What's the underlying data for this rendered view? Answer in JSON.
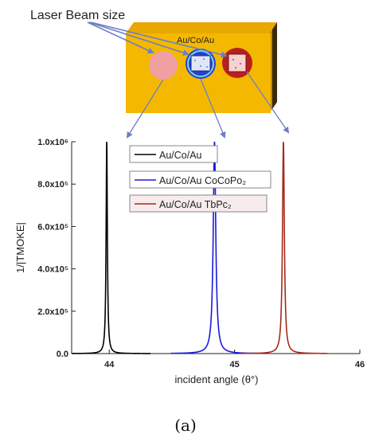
{
  "illustration": {
    "callout": "Laser Beam size",
    "sample_label": "Au/Co/Au",
    "colors": {
      "substrate": "#f5b800",
      "side": "#c98a00",
      "spot_pink": "#f0a0a0",
      "spot_blue": "#2a3fcf",
      "spot_red": "#b82020",
      "arrow": "#6b7fc4"
    }
  },
  "panel_label": "(a)",
  "chart_data": {
    "type": "line",
    "xlabel": "incident angle (θ°)",
    "ylabel": "1/|TMOKE|",
    "xlim": [
      43.7,
      46.0
    ],
    "ylim": [
      0,
      1000000
    ],
    "x_ticks": [
      44,
      45,
      46
    ],
    "x_tick_labels": [
      "44",
      "45",
      "46"
    ],
    "y_ticks": [
      0,
      200000,
      400000,
      600000,
      800000,
      1000000
    ],
    "y_tick_labels": [
      "0.0",
      "2.0x10⁵",
      "4.0x10⁵",
      "6.0x10⁵",
      "8.0x10⁵",
      "1.0x10⁶"
    ],
    "grid": false,
    "legend_position": "top-left",
    "series": [
      {
        "name": "Au/Co/Au",
        "color": "#000000",
        "peak_x": 43.98,
        "peak_y": 1000000,
        "width": 0.006
      },
      {
        "name": "Au/Co/Au CoCoPo₂",
        "color": "#1a1adc",
        "peak_x": 44.84,
        "peak_y": 1000000,
        "width": 0.012
      },
      {
        "name": "Au/Co/Au TbPc₂",
        "color": "#a52a1a",
        "peak_x": 45.39,
        "peak_y": 1000000,
        "width": 0.009
      }
    ]
  }
}
